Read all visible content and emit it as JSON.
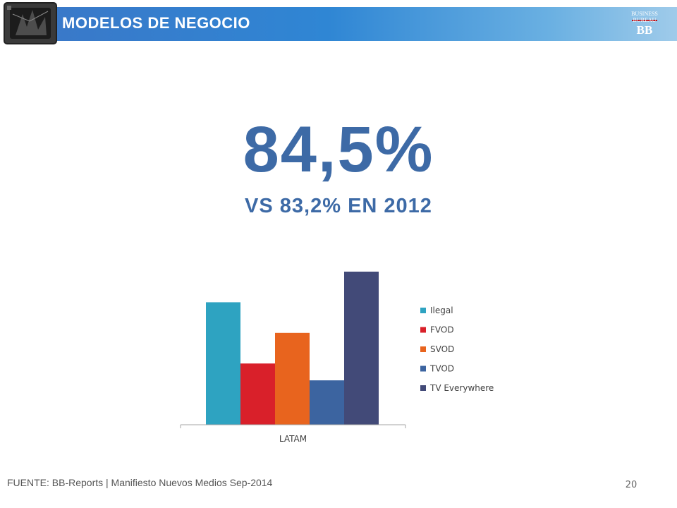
{
  "header": {
    "title": "MODELOS DE NEGOCIO",
    "brand_text": "BUSINESS BUREAU",
    "brand_mark": "BB"
  },
  "headline": {
    "value": "84,5%",
    "comparison": "VS 83,2% EN 2012"
  },
  "chart_data": {
    "type": "bar",
    "categories": [
      "LATAM"
    ],
    "series": [
      {
        "name": "Ilegal",
        "values": [
          80
        ],
        "color": "#2ea3c1"
      },
      {
        "name": "FVOD",
        "values": [
          40
        ],
        "color": "#d9202a"
      },
      {
        "name": "SVOD",
        "values": [
          60
        ],
        "color": "#e8641e"
      },
      {
        "name": "TVOD",
        "values": [
          29
        ],
        "color": "#3c64a0"
      },
      {
        "name": "TV Everywhere",
        "values": [
          100
        ],
        "color": "#424a78"
      }
    ],
    "ylim": [
      0,
      100
    ],
    "grid": false,
    "legend_position": "right"
  },
  "footer": {
    "source": "FUENTE: BB-Reports | Manifiesto Nuevos Medios Sep-2014",
    "page_number": "20"
  }
}
